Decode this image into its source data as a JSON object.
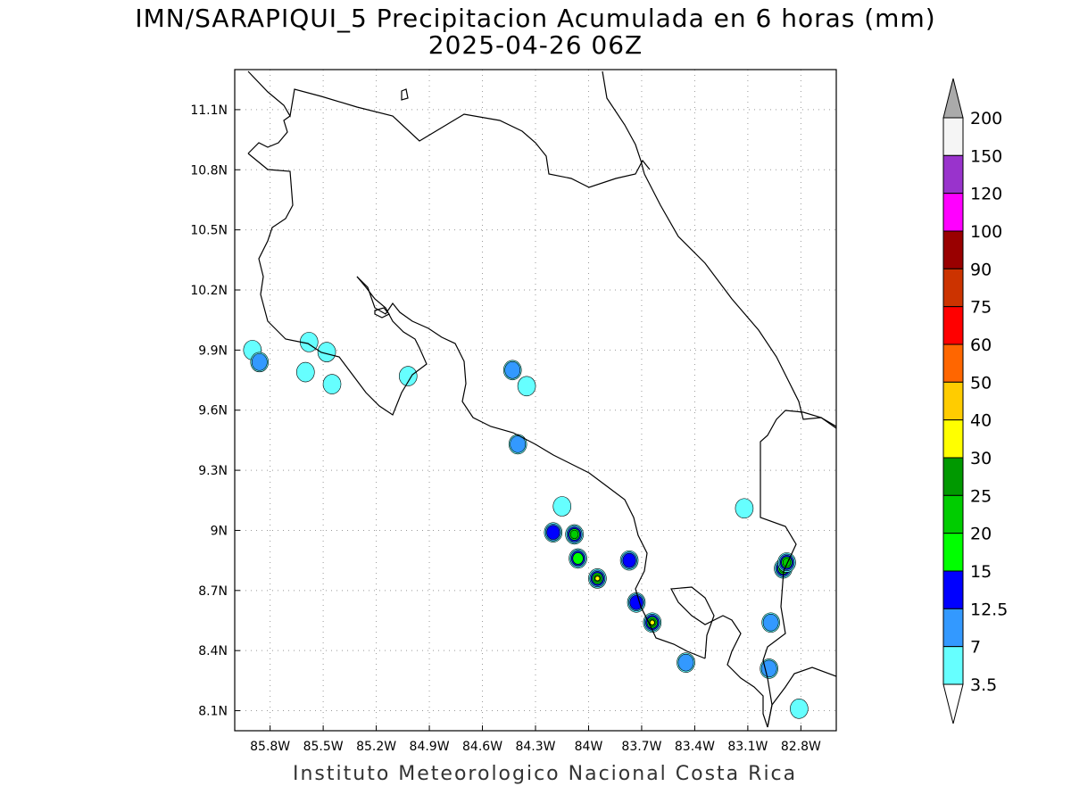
{
  "title": {
    "line1": "IMN/SARAPIQUI_5 Precipitacion Acumulada en 6 horas (mm)",
    "line2": "2025-04-26 06Z"
  },
  "footer": "Instituto Meteorologico Nacional Costa Rica",
  "axes": {
    "x_ticks": [
      "85.8W",
      "85.5W",
      "85.2W",
      "84.9W",
      "84.6W",
      "84.3W",
      "84W",
      "83.7W",
      "83.4W",
      "83.1W",
      "82.8W"
    ],
    "y_ticks": [
      "11.1N",
      "10.8N",
      "10.5N",
      "10.2N",
      "9.9N",
      "9.6N",
      "9.3N",
      "9N",
      "8.7N",
      "8.4N",
      "8.1N"
    ]
  },
  "colorbar": {
    "levels": [
      "3.5",
      "7",
      "12.5",
      "15",
      "20",
      "25",
      "30",
      "40",
      "50",
      "60",
      "75",
      "90",
      "100",
      "120",
      "150",
      "200"
    ],
    "colors": [
      "#66ffff",
      "#3399ff",
      "#0000ff",
      "#00ff00",
      "#00cc00",
      "#009900",
      "#ffff00",
      "#ffcc00",
      "#ff6600",
      "#ff0000",
      "#cc3300",
      "#990000",
      "#ff00ff",
      "#9933cc",
      "#f5f5f5",
      "#aaaaaa"
    ]
  },
  "map_data": {
    "lon_range": [
      -86.0,
      -82.6
    ],
    "lat_range": [
      8.0,
      11.3
    ],
    "precip_cells": [
      {
        "lon": -85.9,
        "lat": 9.9,
        "level": 0
      },
      {
        "lon": -85.86,
        "lat": 9.84,
        "level": 1
      },
      {
        "lon": -85.58,
        "lat": 9.94,
        "level": 0
      },
      {
        "lon": -85.48,
        "lat": 9.89,
        "level": 0
      },
      {
        "lon": -85.6,
        "lat": 9.79,
        "level": 0
      },
      {
        "lon": -85.45,
        "lat": 9.73,
        "level": 0
      },
      {
        "lon": -85.02,
        "lat": 9.77,
        "level": 0
      },
      {
        "lon": -84.43,
        "lat": 9.8,
        "level": 1
      },
      {
        "lon": -84.35,
        "lat": 9.72,
        "level": 0
      },
      {
        "lon": -84.4,
        "lat": 9.43,
        "level": 1
      },
      {
        "lon": -84.15,
        "lat": 9.12,
        "level": 0
      },
      {
        "lon": -84.2,
        "lat": 8.99,
        "level": 2
      },
      {
        "lon": -84.08,
        "lat": 8.98,
        "level": 4
      },
      {
        "lon": -84.06,
        "lat": 8.86,
        "level": 3
      },
      {
        "lon": -83.95,
        "lat": 8.76,
        "level": 6
      },
      {
        "lon": -83.77,
        "lat": 8.85,
        "level": 2
      },
      {
        "lon": -83.73,
        "lat": 8.64,
        "level": 2
      },
      {
        "lon": -83.64,
        "lat": 8.54,
        "level": 6
      },
      {
        "lon": -83.45,
        "lat": 8.34,
        "level": 1
      },
      {
        "lon": -82.9,
        "lat": 8.81,
        "level": 5
      },
      {
        "lon": -82.88,
        "lat": 8.84,
        "level": 4
      },
      {
        "lon": -83.12,
        "lat": 9.11,
        "level": 0
      },
      {
        "lon": -82.97,
        "lat": 8.54,
        "level": 1
      },
      {
        "lon": -82.98,
        "lat": 8.31,
        "level": 1
      },
      {
        "lon": -82.81,
        "lat": 8.11,
        "level": 0
      }
    ]
  }
}
